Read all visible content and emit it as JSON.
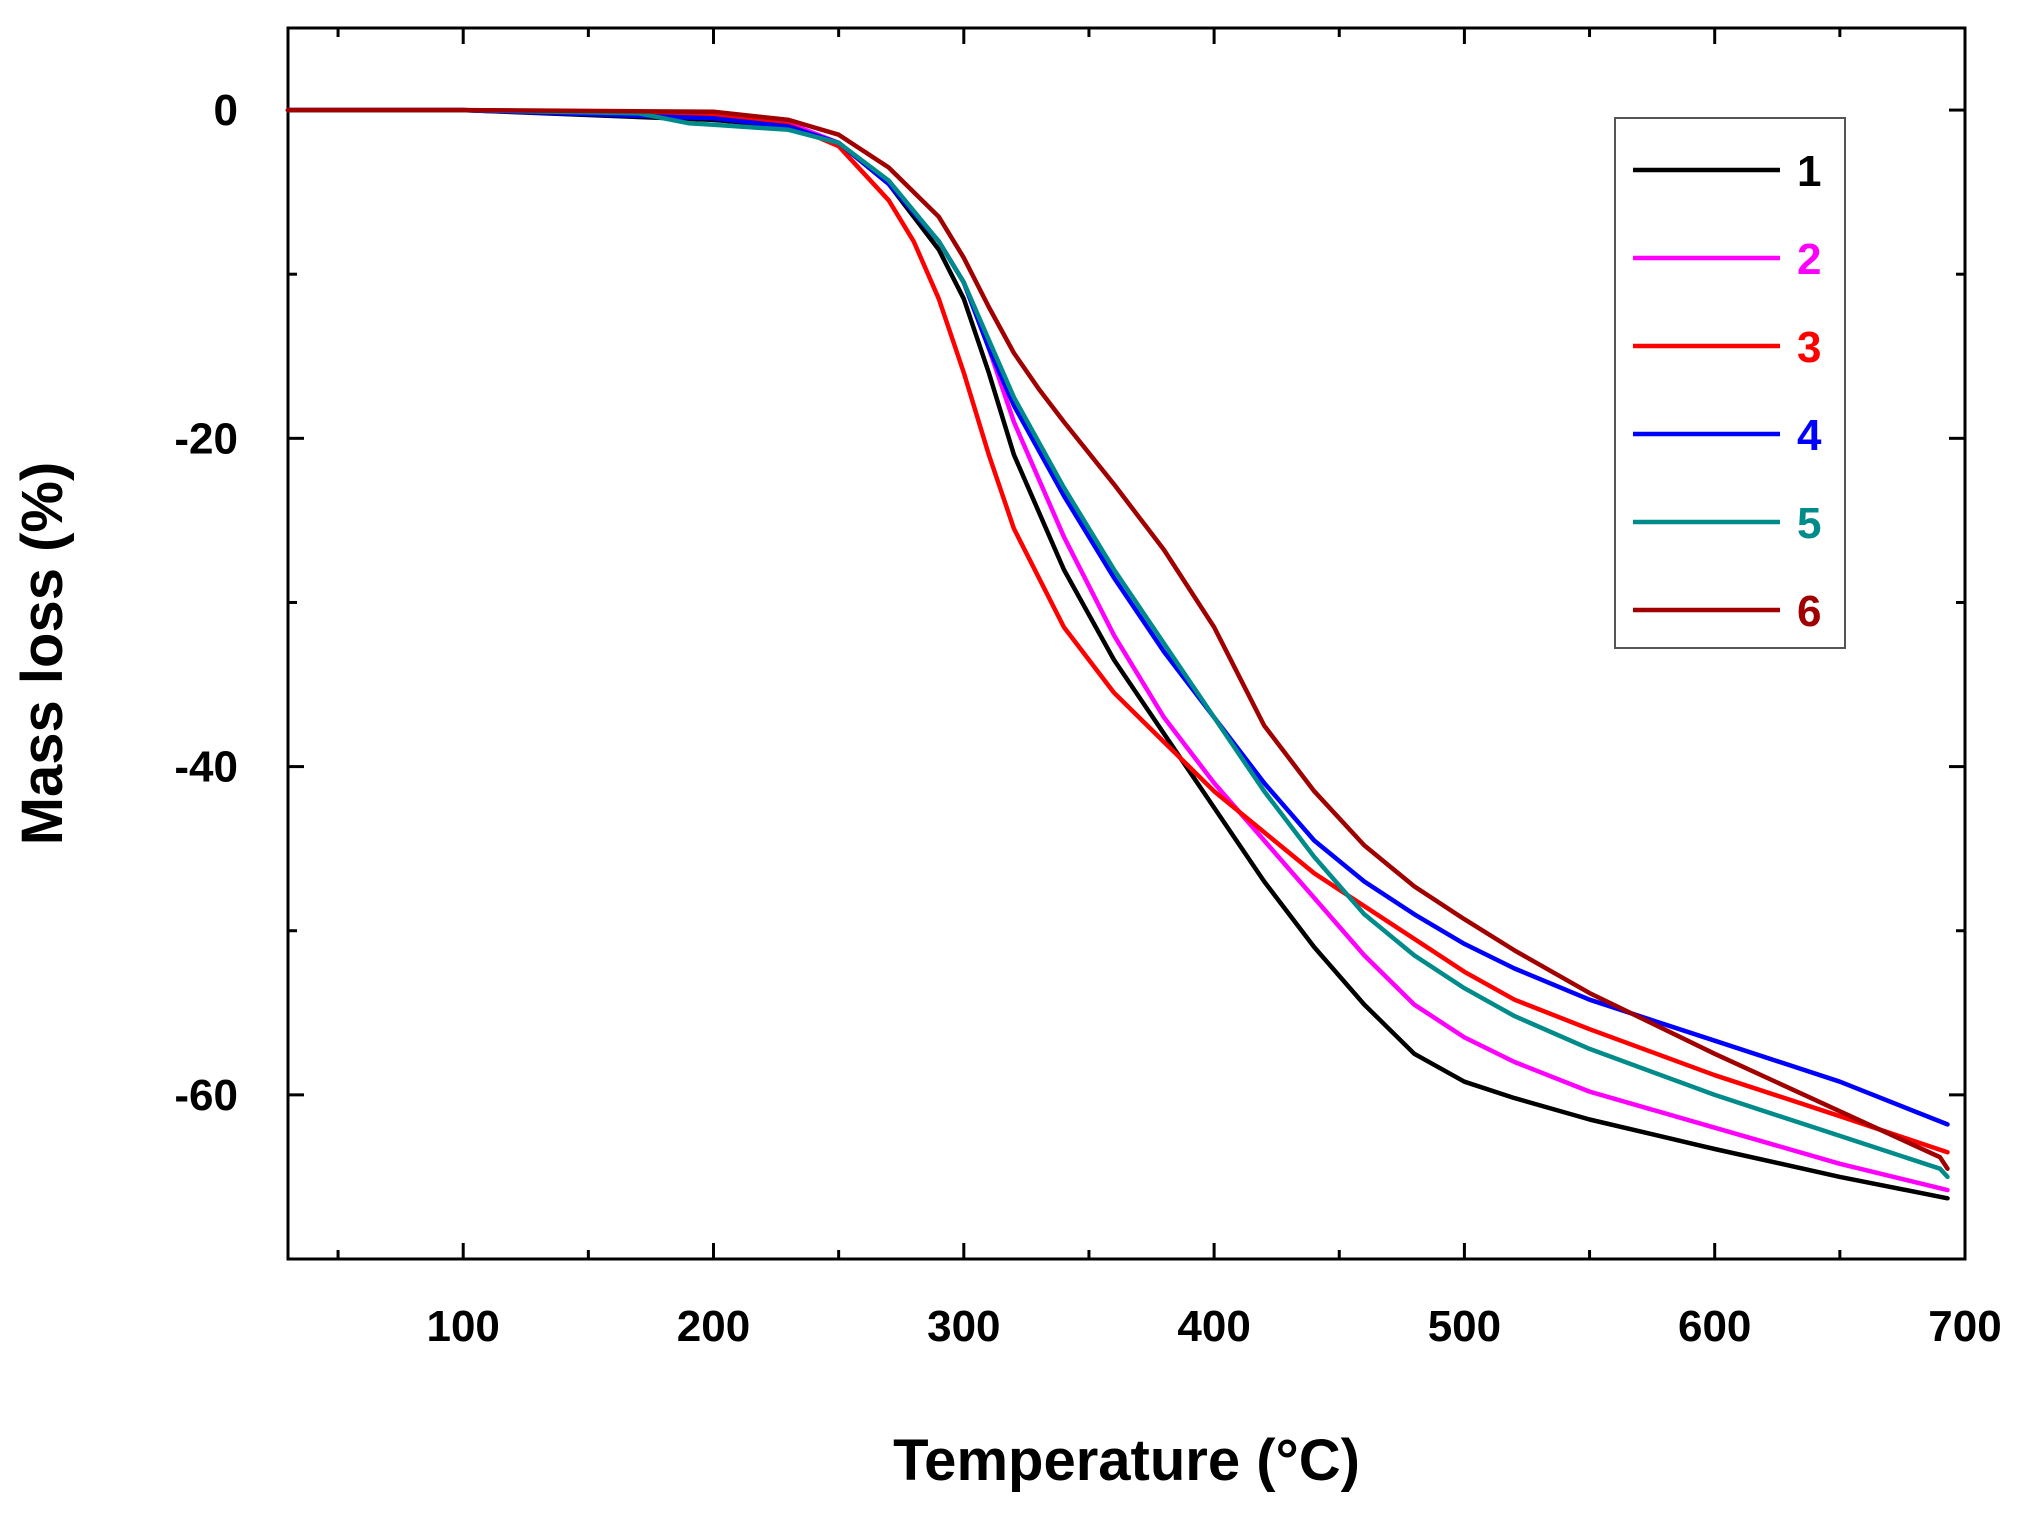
{
  "chart_data": {
    "type": "line",
    "title": "",
    "xlabel": "Temperature (°C)",
    "ylabel": "Mass loss (%)",
    "xlim": [
      30,
      700
    ],
    "ylim": [
      -70,
      5
    ],
    "xticks": [
      100,
      200,
      300,
      400,
      500,
      600,
      700
    ],
    "xtick_labels": [
      "100",
      "200",
      "300",
      "400",
      "500",
      "600",
      "700"
    ],
    "yticks": [
      0,
      -20,
      -40,
      -60
    ],
    "ytick_labels": [
      "0",
      "-20",
      "-40",
      "-60"
    ],
    "grid": false,
    "legend_position": "top-right",
    "series": [
      {
        "name": "1",
        "color": "#000000",
        "x": [
          30,
          100,
          200,
          230,
          250,
          270,
          290,
          300,
          310,
          320,
          340,
          360,
          380,
          400,
          420,
          440,
          460,
          480,
          500,
          520,
          550,
          600,
          650,
          693
        ],
        "y": [
          0,
          0,
          -0.6,
          -1.0,
          -2.0,
          -4.5,
          -8.5,
          -11.5,
          -16.0,
          -21.0,
          -28.0,
          -33.5,
          -38.0,
          -42.5,
          -47.0,
          -51.0,
          -54.5,
          -57.5,
          -59.2,
          -60.2,
          -61.5,
          -63.3,
          -65.0,
          -66.3
        ]
      },
      {
        "name": "2",
        "color": "#ff00ff",
        "x": [
          30,
          100,
          200,
          230,
          250,
          270,
          290,
          300,
          310,
          320,
          340,
          360,
          380,
          400,
          420,
          440,
          460,
          480,
          500,
          520,
          550,
          600,
          650,
          693
        ],
        "y": [
          0,
          0,
          -0.2,
          -0.8,
          -2.0,
          -4.5,
          -8.0,
          -10.5,
          -14.5,
          -19.0,
          -26.0,
          -32.0,
          -37.0,
          -41.0,
          -44.5,
          -48.0,
          -51.5,
          -54.5,
          -56.5,
          -58.0,
          -59.8,
          -62.0,
          -64.2,
          -65.8
        ]
      },
      {
        "name": "3",
        "color": "#ff0000",
        "x": [
          30,
          100,
          200,
          230,
          250,
          270,
          280,
          290,
          300,
          310,
          320,
          340,
          360,
          380,
          400,
          420,
          440,
          460,
          480,
          500,
          520,
          550,
          600,
          650,
          693
        ],
        "y": [
          0,
          0,
          -0.3,
          -0.9,
          -2.2,
          -5.5,
          -8.0,
          -11.5,
          -16.0,
          -21.0,
          -25.5,
          -31.5,
          -35.5,
          -38.5,
          -41.5,
          -44.0,
          -46.5,
          -48.5,
          -50.5,
          -52.5,
          -54.2,
          -56.0,
          -58.8,
          -61.3,
          -63.5
        ]
      },
      {
        "name": "4",
        "color": "#0000ff",
        "x": [
          30,
          100,
          200,
          230,
          250,
          270,
          290,
          300,
          310,
          320,
          340,
          360,
          380,
          400,
          420,
          440,
          460,
          480,
          500,
          520,
          550,
          600,
          650,
          693
        ],
        "y": [
          0,
          0,
          -0.5,
          -1.0,
          -2.0,
          -4.5,
          -8.0,
          -10.5,
          -14.5,
          -18.0,
          -23.5,
          -28.5,
          -33.0,
          -37.0,
          -41.0,
          -44.5,
          -47.0,
          -49.0,
          -50.8,
          -52.3,
          -54.2,
          -56.7,
          -59.2,
          -61.8
        ]
      },
      {
        "name": "5",
        "color": "#008b8b",
        "x": [
          30,
          100,
          170,
          190,
          200,
          230,
          250,
          270,
          290,
          300,
          310,
          320,
          340,
          360,
          380,
          400,
          420,
          440,
          460,
          480,
          500,
          520,
          550,
          600,
          650,
          690,
          693
        ],
        "y": [
          0,
          0,
          -0.2,
          -0.8,
          -0.9,
          -1.2,
          -2.0,
          -4.3,
          -8.0,
          -10.5,
          -14.0,
          -17.5,
          -23.0,
          -28.0,
          -32.5,
          -37.0,
          -41.5,
          -45.5,
          -49.0,
          -51.5,
          -53.5,
          -55.2,
          -57.2,
          -60.0,
          -62.5,
          -64.5,
          -65.0
        ]
      },
      {
        "name": "6",
        "color": "#a00000",
        "x": [
          30,
          100,
          200,
          230,
          250,
          270,
          290,
          300,
          310,
          320,
          330,
          340,
          360,
          380,
          400,
          410,
          420,
          440,
          460,
          480,
          500,
          520,
          550,
          600,
          650,
          690,
          693
        ],
        "y": [
          0,
          0,
          -0.1,
          -0.6,
          -1.5,
          -3.5,
          -6.5,
          -9.0,
          -12.0,
          -14.8,
          -17.0,
          -19.0,
          -22.8,
          -26.8,
          -31.5,
          -34.5,
          -37.5,
          -41.5,
          -44.8,
          -47.3,
          -49.3,
          -51.2,
          -53.8,
          -57.5,
          -61.0,
          -63.8,
          -64.5
        ]
      }
    ]
  }
}
